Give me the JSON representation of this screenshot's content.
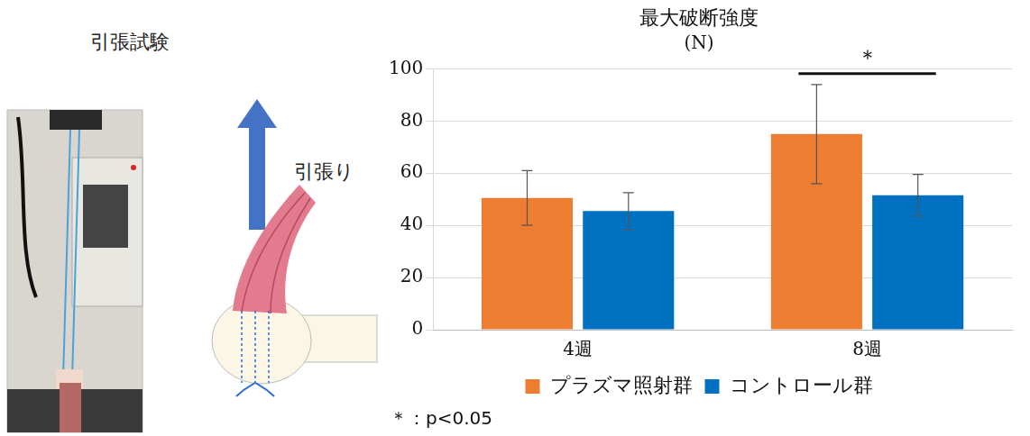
{
  "panel": {
    "title": "引張試験",
    "arrow_label": "引張り"
  },
  "chart_data": {
    "type": "bar",
    "title": "最大破断強度",
    "subtitle": "(N)",
    "categories": [
      "4週",
      "8週"
    ],
    "series": [
      {
        "name": "プラズマ照射群",
        "color": "#ed7d31",
        "values": [
          50.5,
          75
        ],
        "errors": [
          10.5,
          19
        ]
      },
      {
        "name": "コントロール群",
        "color": "#0070c0",
        "values": [
          45.5,
          51.5
        ],
        "errors": [
          7,
          8
        ]
      }
    ],
    "ylim": [
      0,
      100
    ],
    "yticks": [
      0,
      20,
      40,
      60,
      80,
      100
    ],
    "grid": true,
    "legend": "bottom",
    "annotations": [
      {
        "text": "＊",
        "category": "8週"
      }
    ],
    "note": "＊：p<0.05"
  }
}
